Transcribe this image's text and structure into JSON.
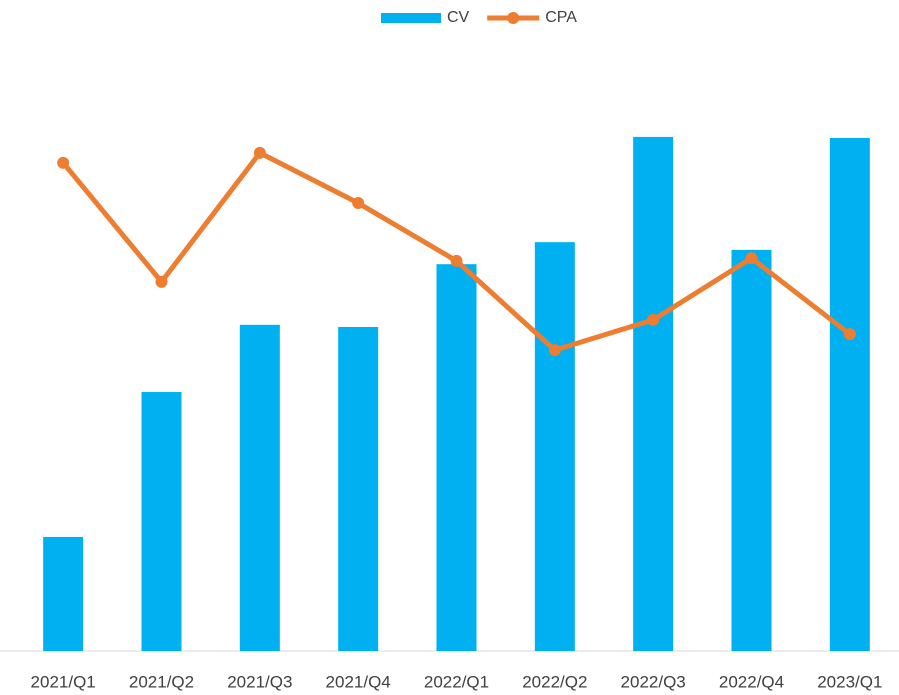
{
  "chart_data": {
    "type": "bar-line",
    "categories": [
      "2021/Q1",
      "2021/Q2",
      "2021/Q3",
      "2021/Q4",
      "2022/Q1",
      "2022/Q2",
      "2022/Q3",
      "2022/Q4",
      "2023/Q1"
    ],
    "series": [
      {
        "name": "CV",
        "type": "bar",
        "color": "#00b0f0",
        "values": [
          20.7,
          47.0,
          59.2,
          58.8,
          70.2,
          74.2,
          93.3,
          72.8,
          93.1
        ]
      },
      {
        "name": "CPA",
        "type": "line",
        "axis": "y2",
        "color": "#ed7d31",
        "values": [
          88.6,
          67.0,
          90.4,
          81.3,
          70.8,
          54.6,
          60.1,
          71.3,
          57.5
        ]
      }
    ],
    "ylim": [
      0,
      100
    ],
    "y2lim": [
      0,
      100
    ],
    "legend": "top",
    "grid": false
  }
}
